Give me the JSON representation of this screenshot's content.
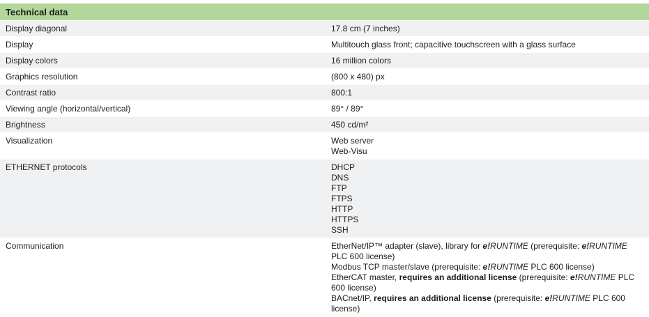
{
  "table": {
    "title": "Technical data",
    "colors": {
      "header_bg": "#b2d79a",
      "alt_row_bg": "#f0f1f2",
      "text": "#1d1d1b"
    },
    "rows": [
      {
        "label": "Display diagonal",
        "lines": [
          [
            {
              "t": "17.8 cm (7 inches)"
            }
          ]
        ]
      },
      {
        "label": "Display",
        "lines": [
          [
            {
              "t": "Multitouch glass front; capacitive touchscreen with a glass surface"
            }
          ]
        ]
      },
      {
        "label": "Display colors",
        "lines": [
          [
            {
              "t": "16 million colors"
            }
          ]
        ]
      },
      {
        "label": "Graphics resolution",
        "lines": [
          [
            {
              "t": "(800 x 480) px"
            }
          ]
        ]
      },
      {
        "label": "Contrast ratio",
        "lines": [
          [
            {
              "t": "800:1"
            }
          ]
        ]
      },
      {
        "label": "Viewing angle (horizontal/vertical)",
        "lines": [
          [
            {
              "t": "89° / 89°"
            }
          ]
        ]
      },
      {
        "label": "Brightness",
        "lines": [
          [
            {
              "t": "450 cd/m²"
            }
          ]
        ]
      },
      {
        "label": "Visualization",
        "lines": [
          [
            {
              "t": "Web server"
            }
          ],
          [
            {
              "t": "Web-Visu"
            }
          ]
        ]
      },
      {
        "label": "ETHERNET protocols",
        "lines": [
          [
            {
              "t": "DHCP"
            }
          ],
          [
            {
              "t": "DNS"
            }
          ],
          [
            {
              "t": "FTP"
            }
          ],
          [
            {
              "t": "FTPS"
            }
          ],
          [
            {
              "t": "HTTP"
            }
          ],
          [
            {
              "t": "HTTPS"
            }
          ],
          [
            {
              "t": "SSH"
            }
          ]
        ]
      },
      {
        "label": "Communication",
        "lines": [
          [
            {
              "t": "EtherNet/IP™ adapter (slave), library for "
            },
            {
              "t": "e!",
              "b": true,
              "i": true
            },
            {
              "t": "RUNTIME",
              "i": true
            },
            {
              "t": " (prerequisite: "
            },
            {
              "t": "e!",
              "b": true,
              "i": true
            },
            {
              "t": "RUNTIME",
              "i": true
            },
            {
              "t": " PLC 600 license)"
            }
          ],
          [
            {
              "t": "Modbus TCP master/slave (prerequisite: "
            },
            {
              "t": "e!",
              "b": true,
              "i": true
            },
            {
              "t": "RUNTIME",
              "i": true
            },
            {
              "t": " PLC 600 license)"
            }
          ],
          [
            {
              "t": "EtherCAT master, "
            },
            {
              "t": "requires an additional license",
              "b": true
            },
            {
              "t": " (prerequisite: "
            },
            {
              "t": "e!",
              "b": true,
              "i": true
            },
            {
              "t": "RUNTIME",
              "i": true
            },
            {
              "t": " PLC 600 license)"
            }
          ],
          [
            {
              "t": "BACnet/IP, "
            },
            {
              "t": "requires an additional license",
              "b": true
            },
            {
              "t": " (prerequisite: "
            },
            {
              "t": "e!",
              "b": true,
              "i": true
            },
            {
              "t": "RUNTIME",
              "i": true
            },
            {
              "t": " PLC 600 license)"
            }
          ]
        ]
      }
    ]
  }
}
